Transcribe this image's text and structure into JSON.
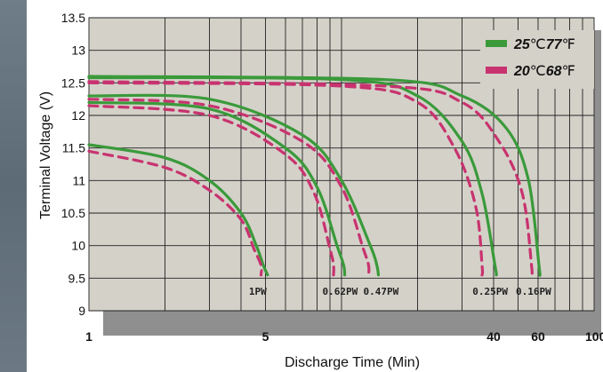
{
  "chart_data": {
    "type": "line",
    "xlabel": "Discharge Time (Min)",
    "ylabel": "Terminal Voltage (V)",
    "xscale": "log",
    "xlim": [
      1,
      100
    ],
    "ylim": [
      9,
      13.5
    ],
    "x_ticks": [
      "1",
      "5",
      "40",
      "60",
      "100"
    ],
    "y_ticks": [
      "9",
      "9.5",
      "10",
      "10.5",
      "11",
      "11.5",
      "12",
      "12.5",
      "13",
      "13.5"
    ],
    "grid": true,
    "legend_position": "top-right",
    "legend": [
      {
        "label_bold": "25",
        "label_mid": "℃",
        "label_bold2": "77",
        "label_end": "℉",
        "color": "#3a9a3a",
        "style": "solid"
      },
      {
        "label_bold": "20",
        "label_mid": "℃",
        "label_bold2": "68",
        "label_end": "℉",
        "color": "#c8336f",
        "style": "dashed"
      }
    ],
    "series": [
      {
        "rate": "1PW",
        "temp": "25",
        "x": [
          1,
          2,
          3,
          4,
          4.6,
          4.9,
          5.1
        ],
        "y": [
          11.55,
          11.35,
          11.0,
          10.5,
          10.0,
          9.7,
          9.55
        ]
      },
      {
        "rate": "1PW",
        "temp": "20",
        "x": [
          1,
          2,
          3,
          4,
          4.5,
          4.8,
          4.8
        ],
        "y": [
          11.45,
          11.2,
          10.85,
          10.4,
          9.95,
          9.7,
          9.55
        ]
      },
      {
        "rate": "0.62PW",
        "temp": "25",
        "x": [
          1,
          3,
          6,
          8,
          9.6,
          10.2,
          10.3
        ],
        "y": [
          12.2,
          12.1,
          11.5,
          10.9,
          10.0,
          9.7,
          9.55
        ]
      },
      {
        "rate": "0.62PW",
        "temp": "20",
        "x": [
          1,
          3,
          6,
          7.8,
          9.0,
          9.3,
          9.3
        ],
        "y": [
          12.15,
          12.0,
          11.4,
          10.8,
          9.95,
          9.7,
          9.55
        ]
      },
      {
        "rate": "0.47PW",
        "temp": "25",
        "x": [
          1,
          3,
          7,
          10,
          13,
          13.8,
          14
        ],
        "y": [
          12.3,
          12.25,
          11.7,
          11.0,
          10.0,
          9.7,
          9.55
        ]
      },
      {
        "rate": "0.47PW",
        "temp": "20",
        "x": [
          1,
          3,
          7,
          10,
          12.2,
          12.8,
          12.8
        ],
        "y": [
          12.25,
          12.15,
          11.6,
          10.9,
          9.95,
          9.7,
          9.55
        ]
      },
      {
        "rate": "0.25PW",
        "temp": "25",
        "x": [
          1,
          10,
          20,
          30,
          36,
          40.5,
          41
        ],
        "y": [
          12.58,
          12.55,
          12.3,
          11.6,
          10.8,
          9.7,
          9.55
        ]
      },
      {
        "rate": "0.25PW",
        "temp": "20",
        "x": [
          1,
          10,
          20,
          28,
          34,
          36,
          36
        ],
        "y": [
          12.5,
          12.45,
          12.2,
          11.5,
          10.6,
          9.7,
          9.55
        ]
      },
      {
        "rate": "0.16PW",
        "temp": "25",
        "x": [
          1,
          15,
          30,
          45,
          55,
          60.5,
          61
        ],
        "y": [
          12.6,
          12.55,
          12.3,
          11.8,
          11.0,
          9.7,
          9.55
        ]
      },
      {
        "rate": "0.16PW",
        "temp": "20",
        "x": [
          1,
          15,
          30,
          42,
          52,
          56.5,
          56.5
        ],
        "y": [
          12.52,
          12.45,
          12.2,
          11.6,
          10.8,
          9.7,
          9.55
        ]
      }
    ],
    "annotations": [
      {
        "text": "1PW",
        "x": 4.3,
        "y": 9.3
      },
      {
        "text": "0.62PW",
        "x": 8.4,
        "y": 9.3
      },
      {
        "text": "0.47PW",
        "x": 12.2,
        "y": 9.3
      },
      {
        "text": "0.25PW",
        "x": 33,
        "y": 9.3
      },
      {
        "text": "0.16PW",
        "x": 49,
        "y": 9.3
      }
    ]
  }
}
